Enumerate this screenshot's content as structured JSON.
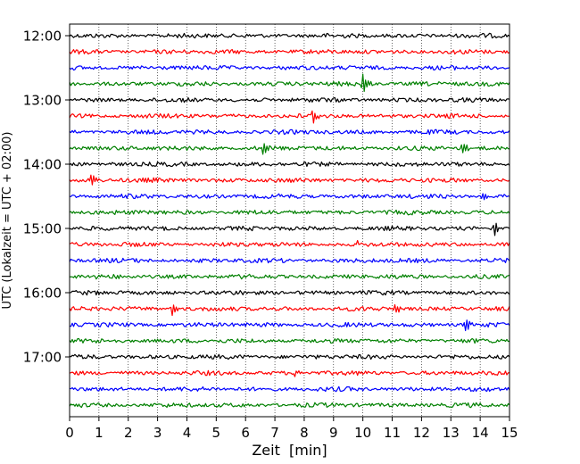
{
  "chart_data": {
    "type": "line",
    "chart_kind": "helicorder seismogram",
    "xlabel": "Zeit  [min]",
    "ylabel": "UTC (Lokalzeit = UTC + 02:00)",
    "xlim": [
      0,
      15
    ],
    "x_ticks": [
      "0",
      "1",
      "2",
      "3",
      "4",
      "5",
      "6",
      "7",
      "8",
      "9",
      "10",
      "11",
      "12",
      "13",
      "14",
      "15"
    ],
    "y_tick_labels": [
      "12:00",
      "13:00",
      "14:00",
      "15:00",
      "16:00",
      "17:00"
    ],
    "row_minutes": 15,
    "start_time": "12:00",
    "trace_count": 24,
    "vertical_grid": "dotted, every minute",
    "trace_colors": [
      "#000000",
      "#ff0000",
      "#0000ff",
      "#008000"
    ],
    "events": [
      {
        "time": "12:45",
        "x": 10.0,
        "amplitude": 1.0
      },
      {
        "time": "13:15",
        "x": 8.3,
        "amplitude": 0.6
      },
      {
        "time": "13:45",
        "x": 6.6,
        "amplitude": 0.45
      },
      {
        "time": "13:45",
        "x": 13.4,
        "amplitude": 0.5
      },
      {
        "time": "14:15",
        "x": 0.75,
        "amplitude": 0.6
      },
      {
        "time": "14:30",
        "x": 14.1,
        "amplitude": 0.4
      },
      {
        "time": "15:00",
        "x": 14.5,
        "amplitude": 0.6
      },
      {
        "time": "15:15",
        "x": 9.8,
        "amplitude": 0.25
      },
      {
        "time": "16:15",
        "x": 3.5,
        "amplitude": 0.55
      },
      {
        "time": "16:15",
        "x": 11.1,
        "amplitude": 0.6
      },
      {
        "time": "16:30",
        "x": 13.5,
        "amplitude": 0.6
      },
      {
        "time": "17:15",
        "x": 7.7,
        "amplitude": 0.25
      }
    ]
  }
}
